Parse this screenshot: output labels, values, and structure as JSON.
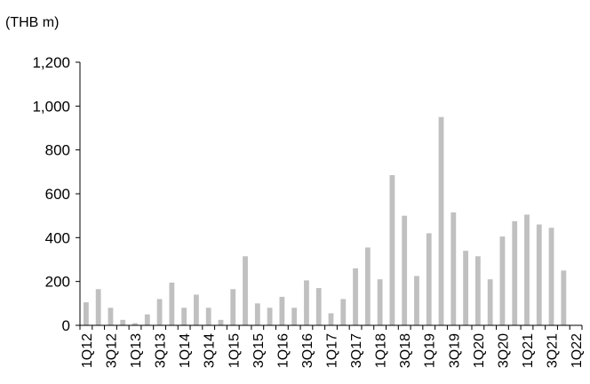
{
  "chart_data": {
    "type": "bar",
    "title": "",
    "xlabel": "",
    "ylabel": "(THB m)",
    "ylim": [
      0,
      1200
    ],
    "yticks": [
      0,
      200,
      400,
      600,
      800,
      1000,
      1200
    ],
    "ytick_labels": [
      "0",
      "200",
      "400",
      "600",
      "800",
      "1,000",
      "1,200"
    ],
    "grid": false,
    "legend": "none",
    "bar_color": "#c0c0c0",
    "categories": [
      "1Q12",
      "2Q12",
      "3Q12",
      "4Q12",
      "1Q13",
      "2Q13",
      "3Q13",
      "4Q13",
      "1Q14",
      "2Q14",
      "3Q14",
      "4Q14",
      "1Q15",
      "2Q15",
      "3Q15",
      "4Q15",
      "1Q16",
      "2Q16",
      "3Q16",
      "4Q16",
      "1Q17",
      "2Q17",
      "3Q17",
      "4Q17",
      "1Q18",
      "2Q18",
      "3Q18",
      "4Q18",
      "1Q19",
      "2Q19",
      "3Q19",
      "4Q19",
      "1Q20",
      "2Q20",
      "3Q20",
      "4Q20",
      "1Q21",
      "2Q21",
      "3Q21",
      "4Q21",
      "1Q22"
    ],
    "xtick_labels": [
      "1Q12",
      "3Q12",
      "1Q13",
      "3Q13",
      "1Q14",
      "3Q14",
      "1Q15",
      "3Q15",
      "1Q16",
      "3Q16",
      "1Q17",
      "3Q17",
      "1Q18",
      "3Q18",
      "1Q19",
      "3Q19",
      "1Q20",
      "3Q20",
      "1Q21",
      "3Q21",
      "1Q22"
    ],
    "values": [
      105,
      165,
      80,
      25,
      10,
      50,
      120,
      195,
      80,
      140,
      80,
      25,
      165,
      315,
      100,
      80,
      130,
      80,
      205,
      170,
      55,
      120,
      260,
      355,
      210,
      685,
      500,
      225,
      420,
      950,
      515,
      340,
      315,
      210,
      405,
      475,
      505,
      460,
      445,
      250,
      0
    ]
  }
}
